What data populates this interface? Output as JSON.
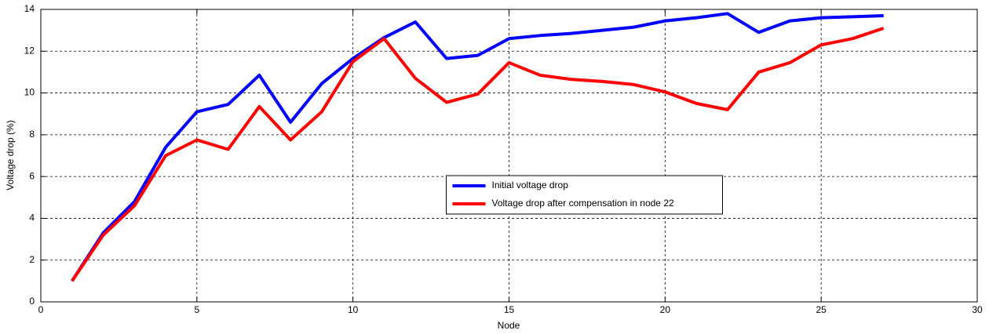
{
  "chart_data": {
    "type": "line",
    "x_label": "Node",
    "y_label": "Voltage drop (%)",
    "x": [
      1,
      2,
      3,
      4,
      5,
      6,
      7,
      8,
      9,
      10,
      11,
      12,
      13,
      14,
      15,
      16,
      17,
      18,
      19,
      20,
      21,
      22,
      23,
      24,
      25,
      26,
      27
    ],
    "series": [
      {
        "name": "Initial voltage drop",
        "color": "#0000ff",
        "values": [
          1.0,
          3.3,
          4.8,
          7.4,
          9.1,
          9.45,
          10.85,
          8.6,
          10.45,
          11.65,
          12.65,
          13.4,
          11.65,
          11.8,
          12.6,
          12.75,
          12.85,
          13.0,
          13.15,
          13.45,
          13.6,
          13.8,
          12.9,
          13.45,
          13.6,
          13.65,
          13.7
        ]
      },
      {
        "name": "Voltage drop after compensation in node 22",
        "color": "#ff0000",
        "values": [
          1.0,
          3.2,
          4.6,
          7.0,
          7.75,
          7.3,
          9.35,
          7.75,
          9.1,
          11.5,
          12.6,
          10.7,
          9.55,
          9.95,
          11.45,
          10.85,
          10.65,
          10.55,
          10.4,
          10.05,
          9.5,
          9.2,
          11.0,
          11.45,
          12.3,
          12.6,
          13.1
        ]
      }
    ],
    "xlim": [
      0,
      30
    ],
    "xticks": [
      0,
      5,
      10,
      15,
      20,
      25,
      30
    ],
    "ylim": [
      0,
      14
    ],
    "yticks": [
      0,
      2,
      4,
      6,
      8,
      10,
      12,
      14
    ],
    "grid": true,
    "legend": "center"
  }
}
